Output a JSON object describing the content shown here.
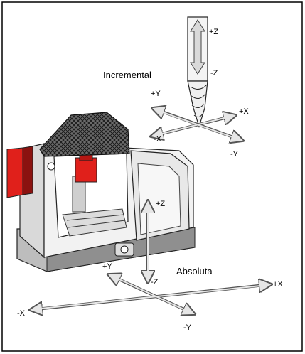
{
  "labels": {
    "incremental": "Incremental",
    "absoluta": "Absoluta"
  },
  "incremental_axes": {
    "plus_z": "+Z",
    "minus_z": "-Z",
    "plus_y": "+Y",
    "minus_y": "-Y",
    "plus_x": "+X",
    "minus_x": "-X"
  },
  "absolute_axes": {
    "plus_z": "+Z",
    "minus_z": "-Z",
    "plus_y": "+Y",
    "minus_y": "-Y",
    "plus_x": "+X",
    "minus_x": "-X"
  },
  "colors": {
    "border": "#000000",
    "arrow_fill": "#e6e6e6",
    "arrow_stroke": "#555555",
    "machine_red": "#e0201b",
    "machine_body": "#f2f2f2",
    "machine_shade": "#cfcfcf",
    "hood": "#3a3a3a"
  }
}
